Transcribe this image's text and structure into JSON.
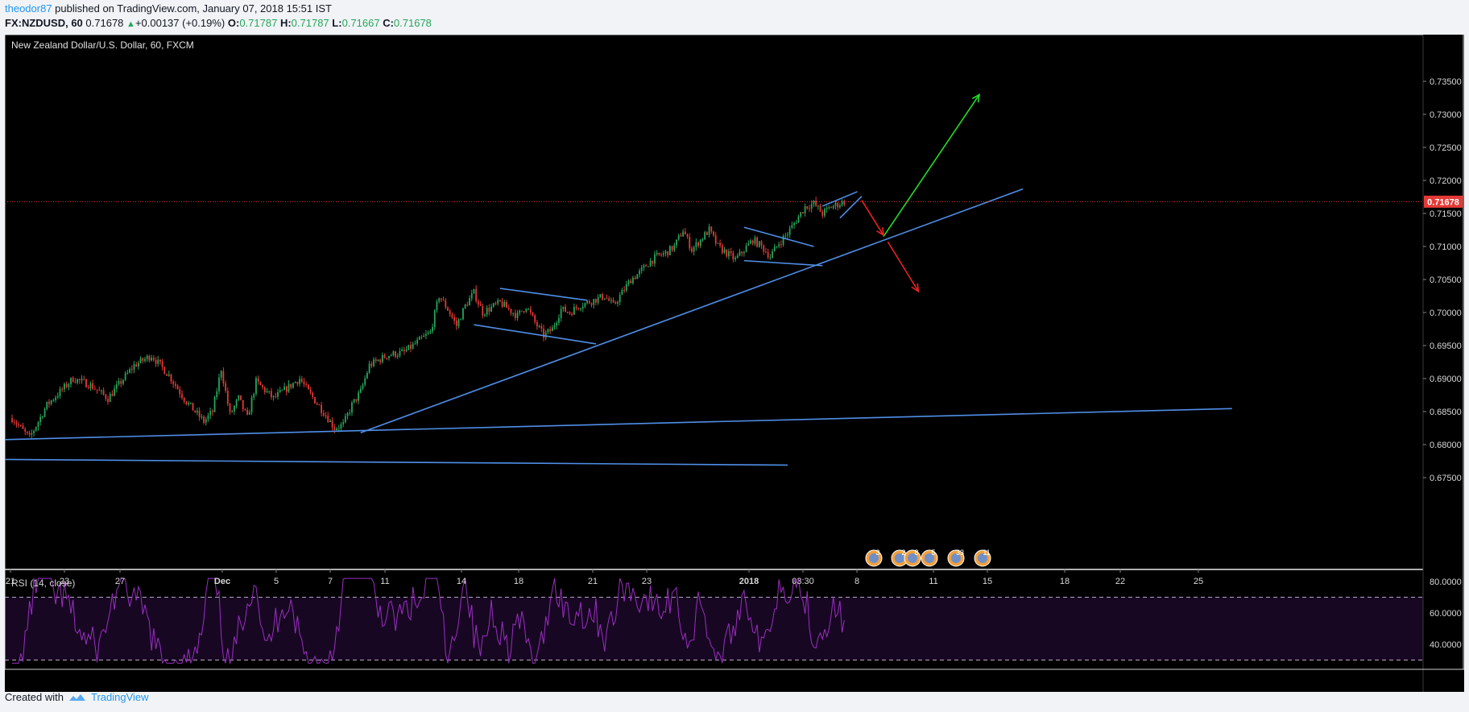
{
  "header": {
    "author": "theodor87",
    "published": " published on TradingView.com, January 07, 2018 15:51 IST",
    "symbol": "FX:NZDUSD, 60",
    "last": "0.71678",
    "change_arrow": "▲",
    "change": "+0.00137 (+0.19%)",
    "o_label": "O:",
    "o": "0.71787",
    "h_label": "H:",
    "h": "0.71787",
    "l_label": "L:",
    "l": "0.71667",
    "c_label": "C:",
    "c": "0.71678"
  },
  "chart_title": "New Zealand Dollar/U.S. Dollar, 60, FXCM",
  "rsi_label": "RSI (14, close)",
  "current_price_label": "0.71678",
  "footer": {
    "created": "Created with",
    "brand": "TradingView"
  },
  "colors": {
    "background": "#000000",
    "up_candle": "#26a65b",
    "down_candle": "#e53935",
    "trendline": "#4f8fe8",
    "rsi_line": "#9b2ec2",
    "price_line": "#e53935",
    "green_arrow": "#22dd22",
    "red_arrow": "#ee2222"
  },
  "chart_data": {
    "type": "candlestick",
    "x_tick_labels": [
      "21",
      "23",
      "27",
      "Dec",
      "5",
      "7",
      "11",
      "14",
      "18",
      "21",
      "23",
      "2018",
      "03:30",
      "8",
      "11",
      "15",
      "18",
      "22",
      "25"
    ],
    "y_tick_labels": [
      "0.73500",
      "0.73000",
      "0.72500",
      "0.72000",
      "0.71500",
      "0.71000",
      "0.70500",
      "0.70000",
      "0.69500",
      "0.69000",
      "0.68500",
      "0.68000",
      "0.67500"
    ],
    "ylim": [
      0.6735,
      0.7365
    ],
    "close_path": [
      [
        0,
        0.684
      ],
      [
        2,
        0.681
      ],
      [
        4,
        0.686
      ],
      [
        7,
        0.69
      ],
      [
        9,
        0.689
      ],
      [
        11,
        0.687
      ],
      [
        14,
        0.692
      ],
      [
        16,
        0.6935
      ],
      [
        18,
        0.6905
      ],
      [
        20,
        0.6865
      ],
      [
        22,
        0.6835
      ],
      [
        23,
        0.685
      ],
      [
        24,
        0.6915
      ],
      [
        25,
        0.6845
      ],
      [
        26,
        0.687
      ],
      [
        27,
        0.684
      ],
      [
        28,
        0.6895
      ],
      [
        30,
        0.687
      ],
      [
        32,
        0.689
      ],
      [
        33,
        0.69
      ],
      [
        34,
        0.688
      ],
      [
        36,
        0.6845
      ],
      [
        37,
        0.6825
      ],
      [
        38,
        0.683
      ],
      [
        39,
        0.686
      ],
      [
        40,
        0.688
      ],
      [
        41,
        0.692
      ],
      [
        43,
        0.6935
      ],
      [
        45,
        0.694
      ],
      [
        47,
        0.696
      ],
      [
        48,
        0.697
      ],
      [
        49,
        0.7025
      ],
      [
        50,
        0.7005
      ],
      [
        51,
        0.698
      ],
      [
        52,
        0.701
      ],
      [
        53,
        0.703
      ],
      [
        54,
        0.7
      ],
      [
        56,
        0.7015
      ],
      [
        57,
        0.7005
      ],
      [
        58,
        0.6995
      ],
      [
        59,
        0.701
      ],
      [
        60,
        0.6985
      ],
      [
        61,
        0.6965
      ],
      [
        62,
        0.6975
      ],
      [
        63,
        0.7005
      ],
      [
        64,
        0.7
      ],
      [
        65,
        0.701
      ],
      [
        66,
        0.7015
      ],
      [
        67,
        0.702
      ],
      [
        68,
        0.7025
      ],
      [
        69,
        0.701
      ],
      [
        70,
        0.703
      ],
      [
        71,
        0.705
      ],
      [
        72,
        0.706
      ],
      [
        73,
        0.7075
      ],
      [
        74,
        0.7085
      ],
      [
        75,
        0.709
      ],
      [
        76,
        0.71
      ],
      [
        77,
        0.7125
      ],
      [
        78,
        0.7095
      ],
      [
        79,
        0.711
      ],
      [
        80,
        0.7125
      ],
      [
        81,
        0.71
      ],
      [
        82,
        0.709
      ],
      [
        83,
        0.708
      ],
      [
        84,
        0.7095
      ],
      [
        85,
        0.711
      ],
      [
        86,
        0.71
      ],
      [
        87,
        0.7085
      ],
      [
        88,
        0.7105
      ],
      [
        89,
        0.712
      ],
      [
        90,
        0.714
      ],
      [
        91,
        0.716
      ],
      [
        92,
        0.7165
      ],
      [
        93,
        0.715
      ],
      [
        94,
        0.716
      ],
      [
        95,
        0.7165
      ],
      [
        95.5,
        0.7168
      ]
    ],
    "trendlines": [
      {
        "from": [
          -1,
          0.68075
        ],
        "to": [
          140,
          0.68545
        ]
      },
      {
        "from": [
          -1,
          0.67775
        ],
        "to": [
          89,
          0.6769
        ]
      },
      {
        "from": [
          40,
          0.6818
        ],
        "to": [
          116,
          0.7187
        ]
      },
      {
        "from": [
          56,
          0.70365
        ],
        "to": [
          66,
          0.70185
        ]
      },
      {
        "from": [
          53,
          0.69815
        ],
        "to": [
          67,
          0.69525
        ]
      },
      {
        "from": [
          84,
          0.7129
        ],
        "to": [
          92,
          0.71
        ]
      },
      {
        "from": [
          84,
          0.70785
        ],
        "to": [
          93,
          0.7071
        ]
      },
      {
        "from": [
          93,
          0.7161
        ],
        "to": [
          97,
          0.7183
        ]
      },
      {
        "from": [
          95,
          0.7143
        ],
        "to": [
          97.5,
          0.7176
        ]
      }
    ],
    "arrows": [
      {
        "color": "green",
        "from": [
          100,
          0.7115
        ],
        "to": [
          111,
          0.733
        ]
      },
      {
        "color": "red",
        "from": [
          97.5,
          0.717
        ],
        "to": [
          100,
          0.7117
        ]
      },
      {
        "color": "red",
        "from": [
          100.5,
          0.7107
        ],
        "to": [
          104,
          0.7032
        ]
      }
    ],
    "rsi": {
      "ylim": [
        25,
        85
      ],
      "levels": [
        70,
        30
      ],
      "y_tick_labels": [
        "80.0000",
        "60.0000",
        "40.0000"
      ]
    },
    "events": [
      "3",
      "2",
      "8",
      "5",
      "33",
      "11"
    ]
  }
}
